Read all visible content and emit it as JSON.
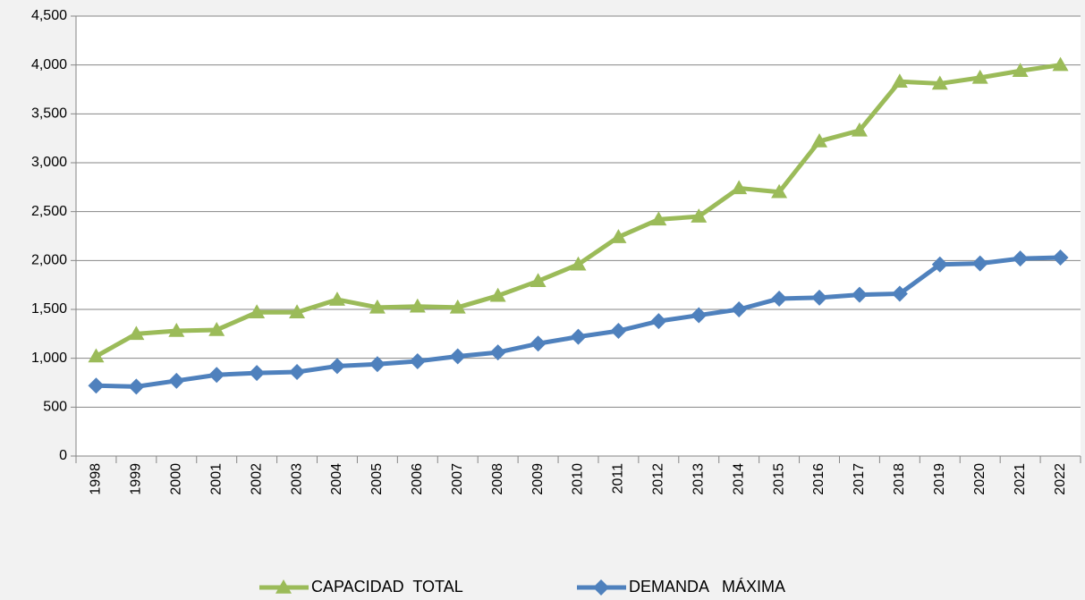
{
  "chart_data": {
    "type": "line",
    "categories": [
      "1998",
      "1999",
      "2000",
      "2001",
      "2002",
      "2003",
      "2004",
      "2005",
      "2006",
      "2007",
      "2008",
      "2009",
      "2010",
      "2011",
      "2012",
      "2013",
      "2014",
      "2015",
      "2016",
      "2017",
      "2018",
      "2019",
      "2020",
      "2021",
      "2022"
    ],
    "series": [
      {
        "name": "CAPACIDAD  TOTAL",
        "color": "#9bbb59",
        "marker": "triangle",
        "values": [
          1020,
          1250,
          1280,
          1290,
          1470,
          1470,
          1600,
          1520,
          1530,
          1520,
          1640,
          1790,
          1960,
          2240,
          2420,
          2450,
          2740,
          2700,
          3220,
          3330,
          3830,
          3810,
          3870,
          3940,
          4000
        ]
      },
      {
        "name": "DEMANDA   MÁXIMA",
        "color": "#4f81bd",
        "marker": "diamond",
        "values": [
          720,
          710,
          770,
          830,
          850,
          860,
          920,
          940,
          970,
          1020,
          1060,
          1150,
          1220,
          1280,
          1380,
          1440,
          1500,
          1610,
          1620,
          1650,
          1660,
          1960,
          1970,
          2020,
          2030
        ]
      }
    ],
    "ylim": [
      0,
      4500
    ],
    "yticks": [
      0,
      500,
      {
        "value": 1000,
        "label": "1,000"
      },
      {
        "value": 1500,
        "label": "1,500"
      },
      {
        "value": 2000,
        "label": "2,000"
      },
      {
        "value": 2500,
        "label": "2,500"
      },
      {
        "value": 3000,
        "label": "3,000"
      },
      {
        "value": 3500,
        "label": "3,500"
      },
      {
        "value": 4000,
        "label": "4,000"
      },
      {
        "value": 4500,
        "label": "4,500"
      }
    ],
    "grid": true,
    "legend": "bottom"
  }
}
